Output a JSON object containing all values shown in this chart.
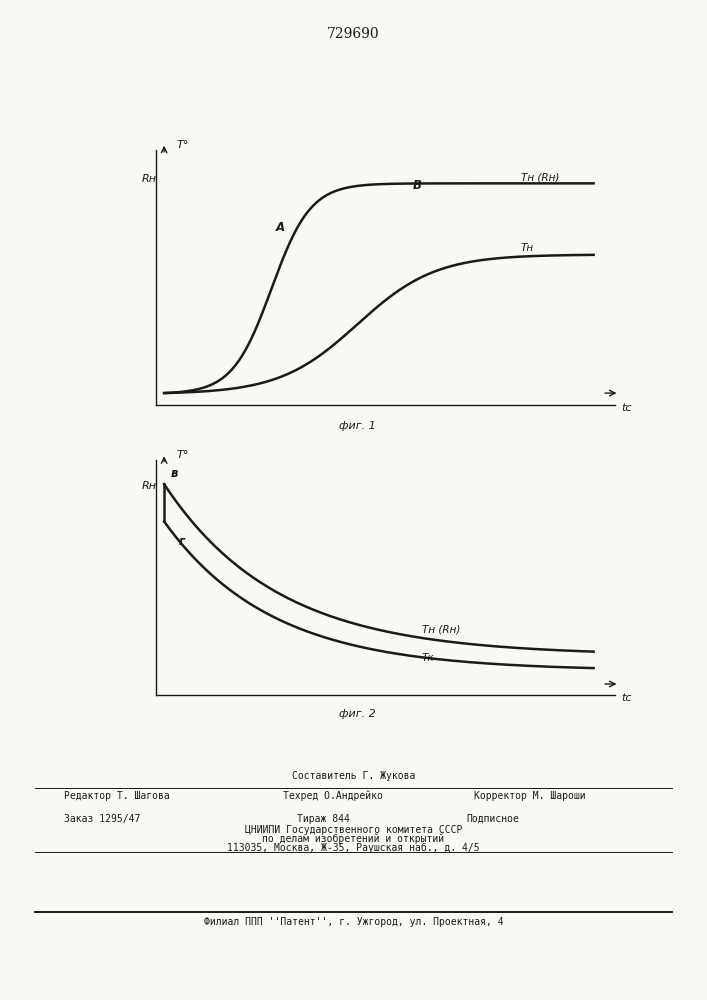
{
  "title": "729690",
  "fig1_caption": "фиг. 1",
  "fig2_caption": "фиг. 2",
  "fig1_ylabel": "Rн",
  "fig1_ylabel2": "T°",
  "fig1_xlabel": "tс",
  "fig1_curve1_label": "Tн (Rн)",
  "fig1_curve2_label": "Tн",
  "fig1_label_A": "A",
  "fig1_label_B": "B",
  "fig2_ylabel": "Rн",
  "fig2_ylabel2": "T°",
  "fig2_xlabel": "tс",
  "fig2_curve1_label": "Tн (Rн)",
  "fig2_curve2_label": "Tк",
  "fig2_label_B": "в",
  "fig2_label_G": "г",
  "footer_composer": "Составитель Г. Жукова",
  "footer_editor": "Редактор Т. Шагова",
  "footer_tech": "Техред О.Андрейко",
  "footer_corrector": "Корректор М. Шароши",
  "footer_order": "Заказ 1295/47",
  "footer_tirazh": "Тираж 844",
  "footer_podp": "Подписное",
  "footer_org": "ЦНИИПИ Государственного комитета СССР",
  "footer_dept": "по делам изобретений и открытий",
  "footer_addr": "113035, Москва, Ж-35, Раушская наб., д. 4/5",
  "footer_branch": "Филиал ППП ''Патент'', г. Ужгород, ул. Проектная, 4",
  "bg_color": "#f8f8f4",
  "line_color": "#1a1a1a"
}
